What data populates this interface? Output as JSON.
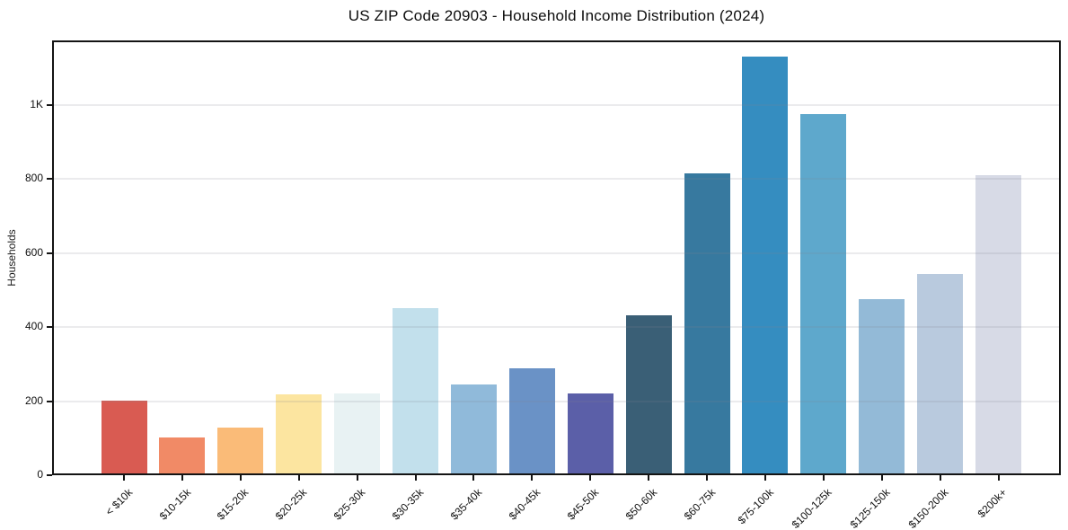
{
  "figure": {
    "title": "US ZIP Code 20903 - Household Income Distribution (2024)"
  },
  "chart_data": {
    "type": "bar",
    "title": "US ZIP Code 20903 - Household Income Distribution (2024)",
    "xlabel": "",
    "ylabel": "Households",
    "categories": [
      "< $10k",
      "$10-15k",
      "$15-20k",
      "$20-25k",
      "$25-30k",
      "$30-35k",
      "$35-40k",
      "$40-45k",
      "$45-50k",
      "$50-60k",
      "$60-75k",
      "$75-100k",
      "$100-125k",
      "$125-150k",
      "$150-200k",
      "$200k+"
    ],
    "values": [
      197,
      98,
      123,
      213,
      216,
      446,
      241,
      283,
      216,
      427,
      812,
      1127,
      971,
      471,
      538,
      805
    ],
    "bar_colors": [
      "#d95b52",
      "#f18a66",
      "#fabb78",
      "#fce5a0",
      "#e8f2f3",
      "#c2e0ec",
      "#90bada",
      "#6a92c6",
      "#5b5fa8",
      "#3a5f76",
      "#37799f",
      "#358dc0",
      "#5ea8cc",
      "#93bad7",
      "#b9cade",
      "#d7dae6"
    ],
    "ylim": [
      0,
      1175
    ],
    "yticks": [
      {
        "value": 0,
        "label": "0"
      },
      {
        "value": 200,
        "label": "200"
      },
      {
        "value": 400,
        "label": "400"
      },
      {
        "value": 600,
        "label": "600"
      },
      {
        "value": 800,
        "label": "800"
      },
      {
        "value": 1000,
        "label": "1K"
      }
    ],
    "grid": "horizontal",
    "legend": "none",
    "background": "#ffffff",
    "spine_color": "#141414"
  }
}
